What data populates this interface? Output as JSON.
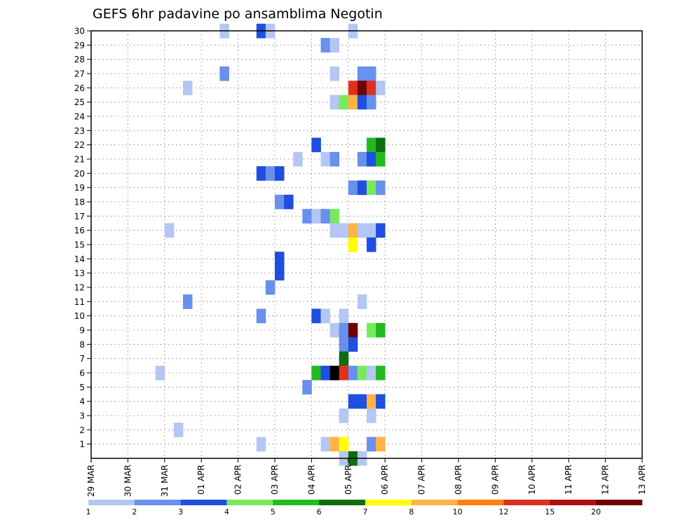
{
  "chart_data": {
    "type": "heatmap",
    "title": "GEFS 6hr padavine po ansamblima Negotin",
    "xlabel": "",
    "ylabel": "",
    "x_tick_labels": [
      "29 MAR",
      "30 MAR",
      "31 MAR",
      "01 APR",
      "02 APR",
      "03 APR",
      "04 APR",
      "05 APR",
      "06 APR",
      "07 APR",
      "08 APR",
      "09 APR",
      "10 APR",
      "11 APR",
      "12 APR",
      "13 APR"
    ],
    "x_range_steps": [
      0,
      60
    ],
    "y_range_members": [
      0,
      30
    ],
    "y_tick_labels": [
      1,
      2,
      3,
      4,
      5,
      6,
      7,
      8,
      9,
      10,
      11,
      12,
      13,
      14,
      15,
      16,
      17,
      18,
      19,
      20,
      21,
      22,
      23,
      24,
      25,
      26,
      27,
      28,
      29,
      30
    ],
    "grid": true,
    "colorbar": {
      "position": "bottom",
      "labels": [
        "1",
        "2",
        "3",
        "4",
        "5",
        "6",
        "7",
        "8",
        "10",
        "12",
        "15",
        "20"
      ],
      "colors": [
        "#b4c6f3",
        "#6890ec",
        "#1f4fe0",
        "#77ea5e",
        "#22bb22",
        "#0f6c10",
        "#ffff00",
        "#ffb347",
        "#ff7f0e",
        "#e0301e",
        "#b01010",
        "#700000"
      ]
    },
    "cells": [
      [
        14,
        30,
        1
      ],
      [
        18,
        30,
        3
      ],
      [
        19,
        30,
        1
      ],
      [
        28,
        30,
        1
      ],
      [
        25,
        29,
        2
      ],
      [
        26,
        29,
        1
      ],
      [
        14,
        27,
        2
      ],
      [
        26,
        27,
        1
      ],
      [
        29,
        27,
        2
      ],
      [
        30,
        27,
        2
      ],
      [
        10,
        26,
        1
      ],
      [
        28,
        26,
        10
      ],
      [
        29,
        26,
        12
      ],
      [
        30,
        26,
        10
      ],
      [
        31,
        26,
        1
      ],
      [
        26,
        25,
        1
      ],
      [
        27,
        25,
        4
      ],
      [
        28,
        25,
        8
      ],
      [
        29,
        25,
        3
      ],
      [
        30,
        25,
        2
      ],
      [
        24,
        22,
        3
      ],
      [
        30,
        22,
        5
      ],
      [
        31,
        22,
        6
      ],
      [
        22,
        21,
        1
      ],
      [
        25,
        21,
        1
      ],
      [
        26,
        21,
        2
      ],
      [
        29,
        21,
        2
      ],
      [
        30,
        21,
        3
      ],
      [
        31,
        21,
        5
      ],
      [
        18,
        20,
        3
      ],
      [
        19,
        20,
        2
      ],
      [
        20,
        20,
        3
      ],
      [
        28,
        19,
        2
      ],
      [
        29,
        19,
        3
      ],
      [
        30,
        19,
        4
      ],
      [
        31,
        19,
        2
      ],
      [
        20,
        18,
        2
      ],
      [
        21,
        18,
        3
      ],
      [
        23,
        17,
        2
      ],
      [
        24,
        17,
        1
      ],
      [
        25,
        17,
        2
      ],
      [
        26,
        17,
        4
      ],
      [
        8,
        16,
        1
      ],
      [
        26,
        16,
        1
      ],
      [
        27,
        16,
        1
      ],
      [
        28,
        16,
        8
      ],
      [
        29,
        16,
        1
      ],
      [
        30,
        16,
        1
      ],
      [
        31,
        16,
        3
      ],
      [
        28,
        15,
        7
      ],
      [
        30,
        15,
        3
      ],
      [
        20,
        14,
        3
      ],
      [
        20,
        13,
        3
      ],
      [
        19,
        12,
        2
      ],
      [
        10,
        11,
        2
      ],
      [
        29,
        11,
        1
      ],
      [
        18,
        10,
        2
      ],
      [
        24,
        10,
        3
      ],
      [
        25,
        10,
        1
      ],
      [
        27,
        10,
        1
      ],
      [
        26,
        9,
        1
      ],
      [
        27,
        9,
        2
      ],
      [
        28,
        9,
        12
      ],
      [
        30,
        9,
        4
      ],
      [
        31,
        9,
        5
      ],
      [
        27,
        8,
        2
      ],
      [
        28,
        8,
        3
      ],
      [
        27,
        7,
        6
      ],
      [
        7,
        6,
        1
      ],
      [
        24,
        6,
        5
      ],
      [
        25,
        6,
        3
      ],
      [
        26,
        6,
        14
      ],
      [
        27,
        6,
        10
      ],
      [
        28,
        6,
        2
      ],
      [
        29,
        6,
        4
      ],
      [
        30,
        6,
        1
      ],
      [
        31,
        6,
        5
      ],
      [
        23,
        5,
        2
      ],
      [
        28,
        4,
        3
      ],
      [
        29,
        4,
        3
      ],
      [
        30,
        4,
        8
      ],
      [
        31,
        4,
        3
      ],
      [
        27,
        3,
        1
      ],
      [
        30,
        3,
        1
      ],
      [
        9,
        2,
        1
      ],
      [
        18,
        1,
        1
      ],
      [
        25,
        1,
        1
      ],
      [
        26,
        1,
        8
      ],
      [
        27,
        1,
        7
      ],
      [
        30,
        1,
        2
      ],
      [
        31,
        1,
        8
      ],
      [
        27,
        0,
        1
      ],
      [
        28,
        0,
        6
      ],
      [
        29,
        0,
        1
      ]
    ]
  }
}
